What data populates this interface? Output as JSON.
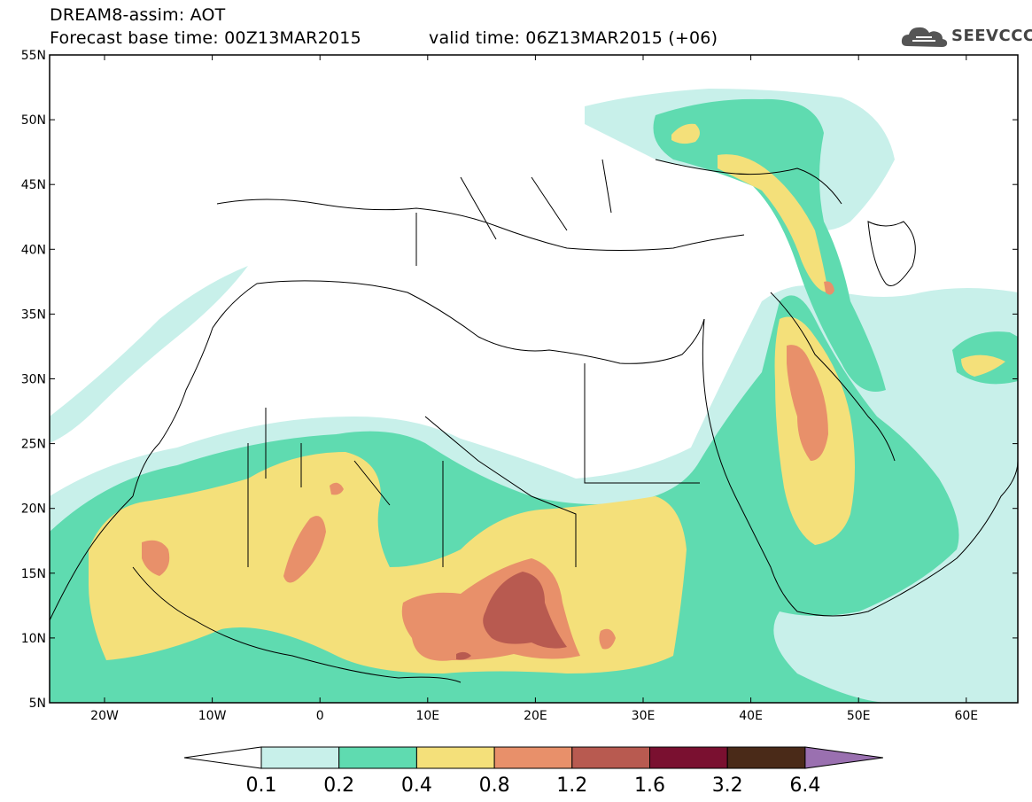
{
  "header": {
    "title": "DREAM8-assim: AOT",
    "base_time": "Forecast base time: 00Z13MAR2015",
    "valid_time": "valid time: 06Z13MAR2015 (+06)"
  },
  "logo": {
    "text": "SEEVCCC",
    "icon": "cloud-icon"
  },
  "map": {
    "lat_labels": [
      "55N",
      "50N",
      "45N",
      "40N",
      "35N",
      "30N",
      "25N",
      "20N",
      "15N",
      "10N",
      "5N"
    ],
    "lon_labels": [
      "20W",
      "10W",
      "0",
      "10E",
      "20E",
      "30E",
      "40E",
      "50E",
      "60E"
    ],
    "colors": {
      "c01": "#c8f0ea",
      "c02": "#5fdbb0",
      "c04": "#f4e07a",
      "c08": "#e8906a",
      "c12": "#b85a50",
      "c16": "#7a1030",
      "c32": "#4a2a18",
      "c64": "#9a70b0"
    }
  },
  "colorbar": {
    "labels": [
      "0.1",
      "0.2",
      "0.4",
      "0.8",
      "1.2",
      "1.6",
      "3.2",
      "6.4"
    ],
    "colors": [
      "#c8f0ea",
      "#5fdbb0",
      "#f4e07a",
      "#e8906a",
      "#b85a50",
      "#7a1030",
      "#4a2a18"
    ],
    "low_end_color": "#ffffff",
    "high_end_color": "#9a70b0"
  }
}
